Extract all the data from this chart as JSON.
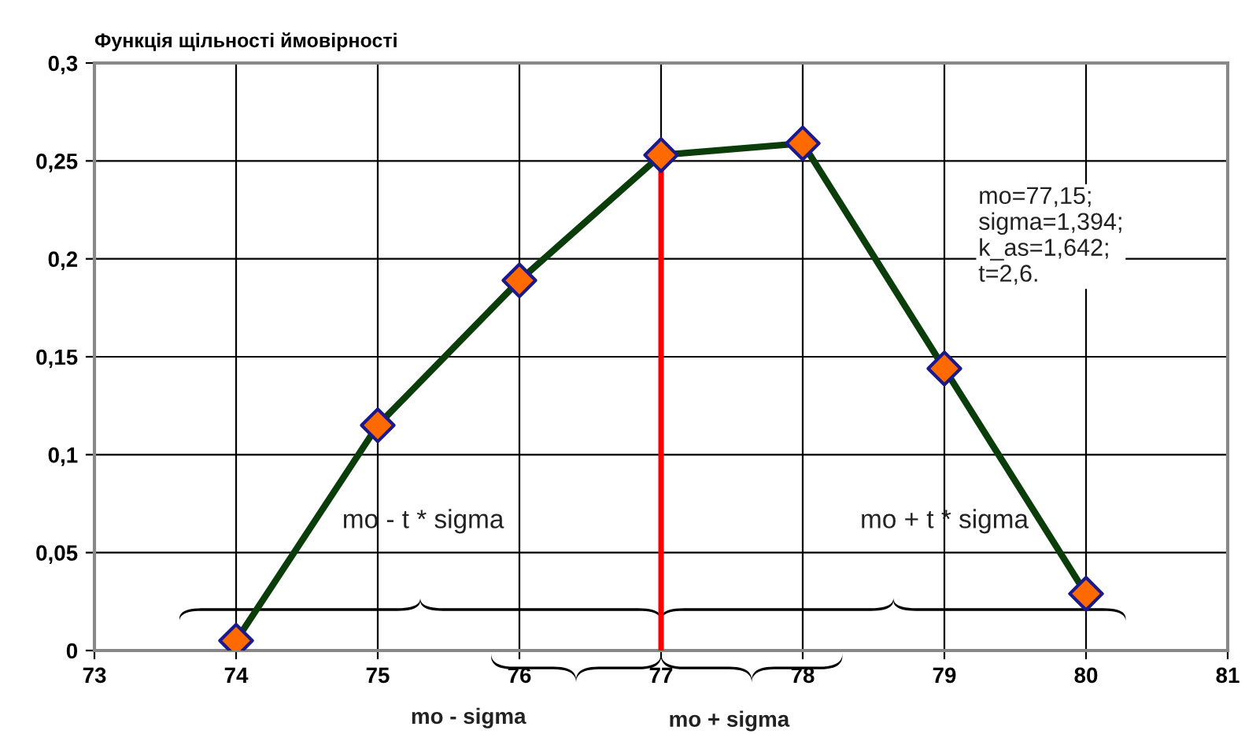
{
  "chart_data": {
    "type": "line",
    "title": "Функція щільності ймовірності",
    "x": [
      74,
      75,
      76,
      77,
      78,
      79,
      80
    ],
    "series": [
      {
        "color": "#0b3d0b",
        "colors": [
          "#ff6a00",
          "#ff6a00",
          "#ff6a00",
          "#ff6a00",
          "#ff6a00",
          "#ff6a00",
          "#ff6a00"
        ],
        "values": [
          0.005,
          0.115,
          0.189,
          0.253,
          0.259,
          0.144,
          0.029
        ]
      }
    ],
    "xlim": [
      73,
      81
    ],
    "xticks": [
      73,
      74,
      75,
      76,
      77,
      78,
      79,
      80,
      81
    ],
    "ylim": [
      0,
      0.3
    ],
    "yticks": [
      0,
      {
        "value": 0.05,
        "label": "0,05"
      },
      {
        "value": 0.1,
        "label": "0,1"
      },
      {
        "value": 0.15,
        "label": "0,15"
      },
      {
        "value": 0.2,
        "label": "0,2"
      },
      {
        "value": 0.25,
        "label": "0,25"
      },
      {
        "value": 0.3,
        "label": "0,3"
      }
    ],
    "grid": true,
    "marker": "diamond",
    "line_style": "solid",
    "ref_lines": [
      {
        "axis": "x",
        "value": 77,
        "color": "#ff0000"
      }
    ],
    "annotations": [
      "mo - t * sigma",
      "mo + t * sigma",
      "mo - sigma",
      "mo + sigma",
      "mo=77,15;\nsigma=1,394;\nk_as=1,642;\nt=2,6."
    ]
  }
}
